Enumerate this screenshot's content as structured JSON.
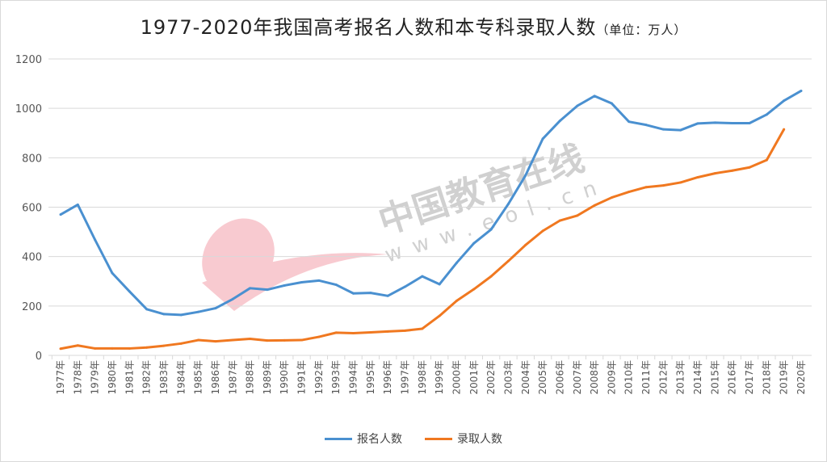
{
  "chart_data": {
    "type": "line",
    "title": "1977-2020年我国高考报名人数和本专科录取人数",
    "subtitle": "（单位：万人）",
    "xlabel": "",
    "ylabel": "",
    "ylim": [
      0,
      1200
    ],
    "yticks": [
      0,
      200,
      400,
      600,
      800,
      1000,
      1200
    ],
    "grid": true,
    "legend": "bottom",
    "categories": [
      "1977年",
      "1978年",
      "1979年",
      "1980年",
      "1981年",
      "1982年",
      "1983年",
      "1984年",
      "1985年",
      "1986年",
      "1987年",
      "1988年",
      "1989年",
      "1990年",
      "1991年",
      "1992年",
      "1993年",
      "1994年",
      "1995年",
      "1996年",
      "1997年",
      "1998年",
      "1999年",
      "2000年",
      "2001年",
      "2002年",
      "2003年",
      "2004年",
      "2005年",
      "2006年",
      "2007年",
      "2008年",
      "2009年",
      "2010年",
      "2011年",
      "2012年",
      "2013年",
      "2014年",
      "2015年",
      "2016年",
      "2017年",
      "2018年",
      "2019年",
      "2020年"
    ],
    "series": [
      {
        "name": "报名人数",
        "color": "#4a90d0",
        "values": [
          570,
          610,
          468,
          333,
          259,
          187,
          167,
          164,
          176,
          191,
          228,
          272,
          266,
          283,
          296,
          303,
          286,
          251,
          253,
          241,
          278,
          320,
          288,
          375,
          454,
          510,
          613,
          729,
          877,
          950,
          1010,
          1050,
          1020,
          946,
          933,
          915,
          912,
          939,
          942,
          940,
          940,
          975,
          1031,
          1071
        ]
      },
      {
        "name": "录取人数",
        "color": "#f07820",
        "values": [
          27,
          40,
          28,
          28,
          28,
          32,
          39,
          48,
          62,
          57,
          62,
          67,
          60,
          61,
          62,
          75,
          92,
          90,
          93,
          97,
          100,
          108,
          160,
          221,
          268,
          320,
          382,
          447,
          504,
          546,
          566,
          607,
          639,
          662,
          681,
          688,
          700,
          721,
          737,
          748,
          761,
          791,
          915,
          null
        ]
      }
    ]
  },
  "watermark": {
    "text": "中国教育在线",
    "url": "www.eol.cn",
    "logo": "eol"
  }
}
